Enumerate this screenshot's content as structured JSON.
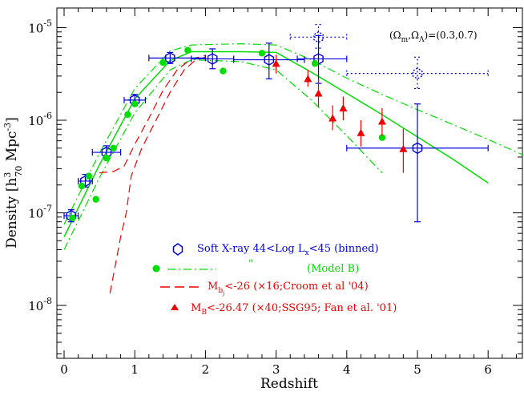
{
  "chart_data": {
    "type": "scatter",
    "ylog": true,
    "xlim": [
      0,
      6.5
    ],
    "ylim": [
      2.5e-09,
      1.6e-05
    ],
    "xlabel": "Redshift",
    "ylabel": "Density [h³₇₀ Mpc⁻³]",
    "x_ticks": [
      "0",
      "1",
      "2",
      "3",
      "4",
      "5",
      "6"
    ],
    "y_ticks": [
      {
        "base": "10",
        "exp": "-8",
        "value": 1e-08
      },
      {
        "base": "10",
        "exp": "-7",
        "value": 1e-07
      },
      {
        "base": "10",
        "exp": "-6",
        "value": 1e-06
      },
      {
        "base": "10",
        "exp": "-5",
        "value": 1e-05
      }
    ],
    "annotation": "(Ωm,ΩΛ)=(0.3,0.7)",
    "colors": {
      "blue": "#0000dd",
      "green": "#00dd00",
      "red": "#ee0000"
    },
    "series": [
      {
        "name": "Soft X-ray 44<Log Lx<45 (binned)",
        "marker": "hexagon",
        "color": "#0000dd",
        "points": [
          {
            "x": 0.1,
            "y": 9.3e-08,
            "xerr": [
              0.1,
              0.1
            ],
            "yerr": [
              8e-08,
              1.08e-07
            ]
          },
          {
            "x": 0.3,
            "y": 2.2e-07,
            "xerr": [
              0.1,
              0.1
            ],
            "yerr": [
              1.9e-07,
              2.6e-07
            ]
          },
          {
            "x": 0.6,
            "y": 4.5e-07,
            "xerr": [
              0.2,
              0.2
            ],
            "yerr": [
              3.9e-07,
              5.3e-07
            ]
          },
          {
            "x": 1.0,
            "y": 1.65e-06,
            "xerr": [
              0.15,
              0.15
            ],
            "yerr": [
              1.45e-06,
              1.9e-06
            ]
          },
          {
            "x": 1.5,
            "y": 4.7e-06,
            "xerr": [
              0.3,
              0.5
            ],
            "yerr": [
              4.1e-06,
              5.4e-06
            ]
          },
          {
            "x": 2.1,
            "y": 4.6e-06,
            "xerr": [
              0.3,
              0.3
            ],
            "yerr": [
              3.6e-06,
              5.9e-06
            ]
          },
          {
            "x": 2.9,
            "y": 4.5e-06,
            "xerr": [
              0.5,
              0.5
            ],
            "yerr": [
              2.8e-06,
              6.8e-06
            ]
          },
          {
            "x": 3.6,
            "y": 4.6e-06,
            "xerr": [
              0.3,
              0.4
            ],
            "yerr": [
              2.5e-06,
              8.2e-06
            ]
          },
          {
            "x": 5.0,
            "y": 5e-07,
            "xerr": [
              1.0,
              1.0
            ],
            "yerr": [
              8e-08,
              1.5e-06
            ]
          }
        ]
      },
      {
        "name": "Soft X-ray 44<Log Lx<45 (binned), dotted",
        "marker": "hexagon",
        "style": "dotted",
        "color": "#0000dd",
        "points": [
          {
            "x": 3.6,
            "y": 7.9e-06,
            "xerr": [
              0.4,
              0.4
            ],
            "yerr": [
              6e-06,
              1.08e-05
            ]
          },
          {
            "x": 5.0,
            "y": 3.2e-06,
            "xerr": [
              1.0,
              1.0
            ],
            "yerr": [
              2.2e-06,
              4.8e-06
            ]
          }
        ]
      },
      {
        "name": "\" (Model B)",
        "marker": "circle",
        "color": "#00dd00",
        "points": [
          {
            "x": 0.12,
            "y": 8.8e-08
          },
          {
            "x": 0.25,
            "y": 1.95e-07
          },
          {
            "x": 0.35,
            "y": 2.5e-07
          },
          {
            "x": 0.45,
            "y": 1.4e-07
          },
          {
            "x": 0.6,
            "y": 3.9e-07
          },
          {
            "x": 0.7,
            "y": 5e-07
          },
          {
            "x": 0.9,
            "y": 1.15e-06
          },
          {
            "x": 1.0,
            "y": 1.5e-06
          },
          {
            "x": 1.4,
            "y": 4.2e-06
          },
          {
            "x": 1.75,
            "y": 5.7e-06
          },
          {
            "x": 2.25,
            "y": 3.4e-06
          },
          {
            "x": 2.8,
            "y": 5.3e-06
          },
          {
            "x": 3.55,
            "y": 4.1e-06
          },
          {
            "x": 4.5,
            "y": 6.5e-07
          }
        ]
      },
      {
        "name": "MB<-26.47 (×40;SSG95; Fan et al. '01)",
        "marker": "triangle",
        "color": "#ee0000",
        "points": [
          {
            "x": 3.0,
            "y": 4.1e-06,
            "yerr": [
              3.2e-06,
              5.1e-06
            ]
          },
          {
            "x": 3.45,
            "y": 2.8e-06,
            "yerr": [
              2.3e-06,
              3.5e-06
            ]
          },
          {
            "x": 3.6,
            "y": 1.95e-06,
            "yerr": [
              1.4e-06,
              2.8e-06
            ]
          },
          {
            "x": 3.8,
            "y": 1.05e-06,
            "yerr": [
              7.8e-07,
              1.45e-06
            ]
          },
          {
            "x": 3.95,
            "y": 1.35e-06,
            "yerr": [
              1e-06,
              1.8e-06
            ]
          },
          {
            "x": 4.2,
            "y": 7.3e-07,
            "yerr": [
              5.2e-07,
              1e-06
            ]
          },
          {
            "x": 4.5,
            "y": 9.7e-07,
            "yerr": [
              6.8e-07,
              1.35e-06
            ]
          },
          {
            "x": 4.8,
            "y": 4.9e-07,
            "yerr": [
              2.7e-07,
              8.1e-07
            ]
          }
        ]
      }
    ],
    "curves": [
      {
        "name": "Model B",
        "color": "#00dd00",
        "style": "solid",
        "points": [
          [
            0,
            5.5e-08
          ],
          [
            0.5,
            3.3e-07
          ],
          [
            1,
            1.7e-06
          ],
          [
            1.5,
            4.4e-06
          ],
          [
            1.8,
            5.5e-06
          ],
          [
            2.5,
            5.5e-06
          ],
          [
            3.0,
            5.4e-06
          ],
          [
            3.5,
            3.3e-06
          ],
          [
            4.0,
            1.95e-06
          ],
          [
            4.5,
            1.15e-06
          ],
          [
            5.0,
            6.6e-07
          ],
          [
            5.5,
            3.8e-07
          ],
          [
            6.0,
            2.1e-07
          ]
        ]
      },
      {
        "name": "Model B upper",
        "color": "#00dd00",
        "style": "dashdot",
        "points": [
          [
            0,
            7.5e-08
          ],
          [
            0.5,
            4.4e-07
          ],
          [
            1,
            2.2e-06
          ],
          [
            1.5,
            5.6e-06
          ],
          [
            1.8,
            6.5e-06
          ],
          [
            2.5,
            6.7e-06
          ],
          [
            3.0,
            6.5e-06
          ],
          [
            3.5,
            4.5e-06
          ],
          [
            4.0,
            2.85e-06
          ],
          [
            4.5,
            1.9e-06
          ],
          [
            5.0,
            1.3e-06
          ],
          [
            5.5,
            9e-07
          ],
          [
            6.0,
            6.2e-07
          ],
          [
            6.5,
            4.2e-07
          ]
        ]
      },
      {
        "name": "Model B lower",
        "color": "#00dd00",
        "style": "dashdot",
        "points": [
          [
            0,
            4e-08
          ],
          [
            0.5,
            2.4e-07
          ],
          [
            1,
            1.2e-06
          ],
          [
            1.5,
            3.5e-06
          ],
          [
            1.8,
            4.5e-06
          ],
          [
            2.5,
            4.3e-06
          ],
          [
            3.0,
            3.5e-06
          ],
          [
            3.5,
            1.65e-06
          ],
          [
            4.0,
            6.8e-07
          ],
          [
            4.5,
            2.7e-07
          ]
        ]
      },
      {
        "name": "Mbj<-26 (×16;Croom et al '04)",
        "color": "#ee0000",
        "style": "dashed",
        "points": [
          [
            0.65,
            1.35e-08
          ],
          [
            0.8,
            5.5e-08
          ],
          [
            0.88,
            1e-07
          ],
          [
            0.95,
            2.5e-07
          ],
          [
            1.1,
            5e-07
          ],
          [
            1.3,
            1e-06
          ],
          [
            1.5,
            2e-06
          ],
          [
            1.7,
            3.5e-06
          ],
          [
            1.85,
            4.4e-06
          ],
          [
            2.0,
            4.8e-06
          ]
        ]
      },
      {
        "name": "Mbj<-26 upper",
        "color": "#ee0000",
        "style": "dashed",
        "points": [
          [
            0.5,
            2.7e-07
          ],
          [
            0.7,
            2.8e-07
          ],
          [
            0.85,
            3.2e-07
          ],
          [
            1.0,
            5.5e-07
          ],
          [
            1.2,
            1.05e-06
          ],
          [
            1.4,
            2.1e-06
          ],
          [
            1.6,
            3.5e-06
          ],
          [
            1.8,
            4.6e-06
          ],
          [
            2.0,
            5e-06
          ]
        ]
      }
    ]
  },
  "legend": {
    "line1": {
      "text": "Soft X-ray 44<Log L",
      "sub": "x",
      "tail": "<45 (binned)"
    },
    "line2": {
      "quote": "\"",
      "text": "(Model B)"
    },
    "line3": {
      "text": "M",
      "sub": "b",
      "subsub": "j",
      "tail": "<-26 (×16;Croom et al '04)"
    },
    "line4": {
      "text": "M",
      "sub": "B",
      "tail": "<-26.47 (×40;SSG95; Fan et al. '01)"
    }
  },
  "annotation_parts": {
    "open": "(Ω",
    "m": "m",
    ",": ",Ω",
    "L": "Λ",
    "close": ")=(0.3,0.7)"
  },
  "ylabel_parts": {
    "a": "Density [h",
    "sup": "3",
    "sub": "70",
    "b": " Mpc",
    "sup2": "-3",
    "c": "]"
  }
}
